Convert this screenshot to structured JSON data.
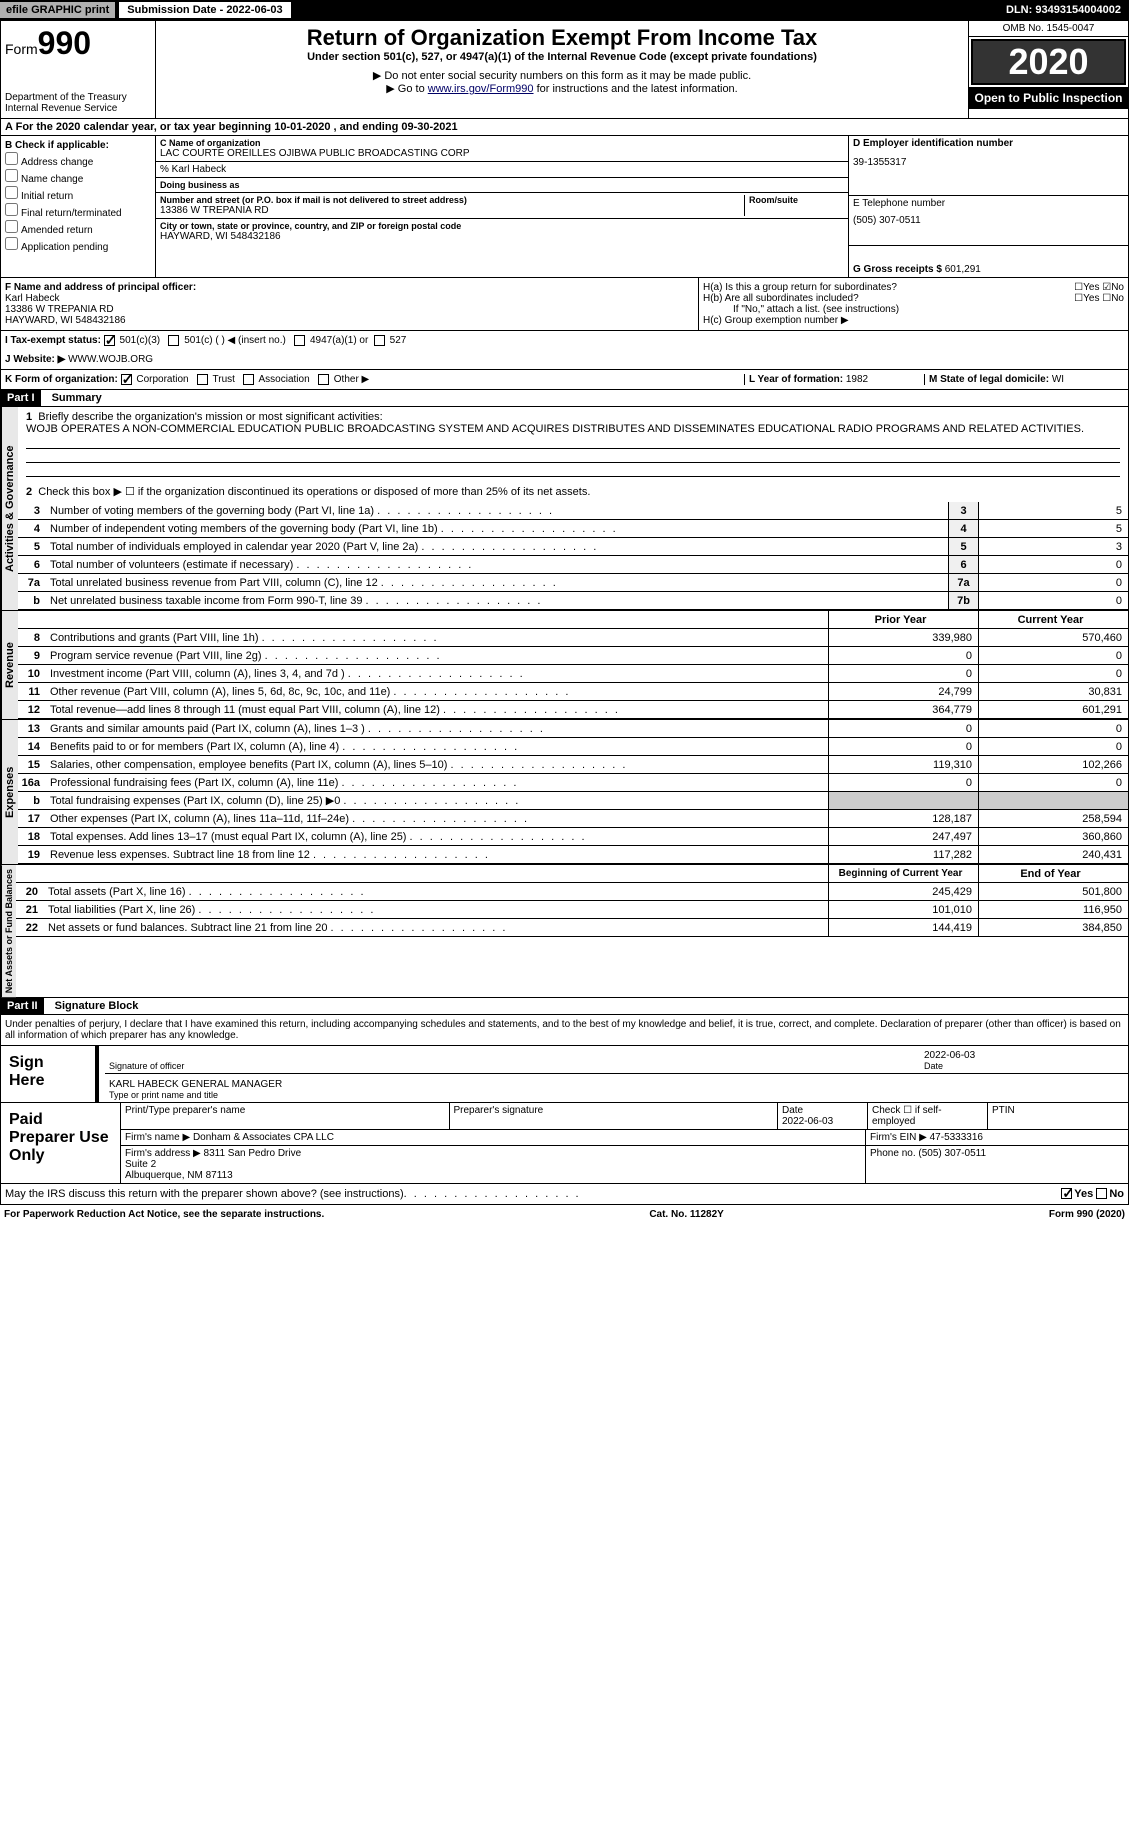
{
  "topbar": {
    "efile": "efile GRAPHIC print",
    "submission_label": "Submission Date - 2022-06-03",
    "dln": "DLN: 93493154004002"
  },
  "header": {
    "form_prefix": "Form",
    "form_num": "990",
    "dept": "Department of the Treasury",
    "irs": "Internal Revenue Service",
    "title": "Return of Organization Exempt From Income Tax",
    "subtitle": "Under section 501(c), 527, or 4947(a)(1) of the Internal Revenue Code (except private foundations)",
    "note1": "▶ Do not enter social security numbers on this form as it may be made public.",
    "note2_pre": "▶ Go to ",
    "note2_link": "www.irs.gov/Form990",
    "note2_post": " for instructions and the latest information.",
    "omb": "OMB No. 1545-0047",
    "year": "2020",
    "open": "Open to Public Inspection"
  },
  "period": "For the 2020 calendar year, or tax year beginning 10-01-2020    , and ending 09-30-2021",
  "section_b": {
    "title": "B Check if applicable:",
    "items": [
      "Address change",
      "Name change",
      "Initial return",
      "Final return/terminated",
      "Amended return",
      "Application pending"
    ]
  },
  "section_c": {
    "name_lbl": "C Name of organization",
    "name": "LAC COURTE OREILLES OJIBWA PUBLIC BROADCASTING CORP",
    "care_of": "% Karl Habeck",
    "dba_lbl": "Doing business as",
    "addr_lbl": "Number and street (or P.O. box if mail is not delivered to street address)",
    "addr": "13386 W TREPANIA RD",
    "room_lbl": "Room/suite",
    "city_lbl": "City or town, state or province, country, and ZIP or foreign postal code",
    "city": "HAYWARD, WI  548432186"
  },
  "section_d": {
    "ein_lbl": "D Employer identification number",
    "ein": "39-1355317",
    "tel_lbl": "E Telephone number",
    "tel": "(505) 307-0511",
    "gross_lbl": "G Gross receipts $",
    "gross": "601,291"
  },
  "section_f": {
    "lbl": "F Name and address of principal officer:",
    "name": "Karl Habeck",
    "addr1": "13386 W TREPANIA RD",
    "addr2": "HAYWARD, WI  548432186"
  },
  "section_h": {
    "ha": "H(a)  Is this a group return for subordinates?",
    "hb": "H(b)  Are all subordinates included?",
    "hb_note": "If \"No,\" attach a list. (see instructions)",
    "hc": "H(c)  Group exemption number ▶",
    "yes": "Yes",
    "no": "No"
  },
  "section_i": {
    "lbl": "I    Tax-exempt status:",
    "opt1": "501(c)(3)",
    "opt2": "501(c) (   ) ◀ (insert no.)",
    "opt3": "4947(a)(1) or",
    "opt4": "527"
  },
  "section_j": {
    "lbl": "J   Website: ▶",
    "val": "WWW.WOJB.ORG"
  },
  "section_k": {
    "lbl": "K Form of organization:",
    "opts": [
      "Corporation",
      "Trust",
      "Association",
      "Other ▶"
    ],
    "l_lbl": "L Year of formation:",
    "l_val": "1982",
    "m_lbl": "M State of legal domicile:",
    "m_val": "WI"
  },
  "part1": {
    "hdr": "Part I",
    "title": "Summary",
    "q1": "Briefly describe the organization's mission or most significant activities:",
    "mission": "WOJB OPERATES A NON-COMMERCIAL EDUCATION PUBLIC BROADCASTING SYSTEM AND ACQUIRES DISTRIBUTES AND DISSEMINATES EDUCATIONAL RADIO PROGRAMS AND RELATED ACTIVITIES.",
    "q2": "Check this box ▶ ☐  if the organization discontinued its operations or disposed of more than 25% of its net assets.",
    "side_labels": {
      "gov": "Activities & Governance",
      "rev": "Revenue",
      "exp": "Expenses",
      "net": "Net Assets or Fund Balances"
    },
    "prior_hdr": "Prior Year",
    "current_hdr": "Current Year",
    "boy_hdr": "Beginning of Current Year",
    "eoy_hdr": "End of Year",
    "lines_gov": [
      {
        "n": "3",
        "d": "Number of voting members of the governing body (Part VI, line 1a)",
        "b": "3",
        "v": "5"
      },
      {
        "n": "4",
        "d": "Number of independent voting members of the governing body (Part VI, line 1b)",
        "b": "4",
        "v": "5"
      },
      {
        "n": "5",
        "d": "Total number of individuals employed in calendar year 2020 (Part V, line 2a)",
        "b": "5",
        "v": "3"
      },
      {
        "n": "6",
        "d": "Total number of volunteers (estimate if necessary)",
        "b": "6",
        "v": "0"
      },
      {
        "n": "7a",
        "d": "Total unrelated business revenue from Part VIII, column (C), line 12",
        "b": "7a",
        "v": "0"
      },
      {
        "n": "b",
        "d": "Net unrelated business taxable income from Form 990-T, line 39",
        "b": "7b",
        "v": "0"
      }
    ],
    "lines_rev": [
      {
        "n": "8",
        "d": "Contributions and grants (Part VIII, line 1h)",
        "p": "339,980",
        "c": "570,460"
      },
      {
        "n": "9",
        "d": "Program service revenue (Part VIII, line 2g)",
        "p": "0",
        "c": "0"
      },
      {
        "n": "10",
        "d": "Investment income (Part VIII, column (A), lines 3, 4, and 7d )",
        "p": "0",
        "c": "0"
      },
      {
        "n": "11",
        "d": "Other revenue (Part VIII, column (A), lines 5, 6d, 8c, 9c, 10c, and 11e)",
        "p": "24,799",
        "c": "30,831"
      },
      {
        "n": "12",
        "d": "Total revenue—add lines 8 through 11 (must equal Part VIII, column (A), line 12)",
        "p": "364,779",
        "c": "601,291"
      }
    ],
    "lines_exp": [
      {
        "n": "13",
        "d": "Grants and similar amounts paid (Part IX, column (A), lines 1–3 )",
        "p": "0",
        "c": "0"
      },
      {
        "n": "14",
        "d": "Benefits paid to or for members (Part IX, column (A), line 4)",
        "p": "0",
        "c": "0"
      },
      {
        "n": "15",
        "d": "Salaries, other compensation, employee benefits (Part IX, column (A), lines 5–10)",
        "p": "119,310",
        "c": "102,266"
      },
      {
        "n": "16a",
        "d": "Professional fundraising fees (Part IX, column (A), line 11e)",
        "p": "0",
        "c": "0"
      },
      {
        "n": "b",
        "d": "Total fundraising expenses (Part IX, column (D), line 25) ▶0",
        "p": "gray",
        "c": "gray"
      },
      {
        "n": "17",
        "d": "Other expenses (Part IX, column (A), lines 11a–11d, 11f–24e)",
        "p": "128,187",
        "c": "258,594"
      },
      {
        "n": "18",
        "d": "Total expenses. Add lines 13–17 (must equal Part IX, column (A), line 25)",
        "p": "247,497",
        "c": "360,860"
      },
      {
        "n": "19",
        "d": "Revenue less expenses. Subtract line 18 from line 12",
        "p": "117,282",
        "c": "240,431"
      }
    ],
    "lines_net": [
      {
        "n": "20",
        "d": "Total assets (Part X, line 16)",
        "p": "245,429",
        "c": "501,800"
      },
      {
        "n": "21",
        "d": "Total liabilities (Part X, line 26)",
        "p": "101,010",
        "c": "116,950"
      },
      {
        "n": "22",
        "d": "Net assets or fund balances. Subtract line 21 from line 20",
        "p": "144,419",
        "c": "384,850"
      }
    ]
  },
  "part2": {
    "hdr": "Part II",
    "title": "Signature Block",
    "declaration": "Under penalties of perjury, I declare that I have examined this return, including accompanying schedules and statements, and to the best of my knowledge and belief, it is true, correct, and complete. Declaration of preparer (other than officer) is based on all information of which preparer has any knowledge.",
    "sign_here": "Sign Here",
    "sig_officer": "Signature of officer",
    "sig_date": "Date",
    "sig_date_val": "2022-06-03",
    "officer_name": "KARL HABECK  GENERAL MANAGER",
    "type_name": "Type or print name and title",
    "paid_prep": "Paid Preparer Use Only",
    "prep_name_lbl": "Print/Type preparer's name",
    "prep_sig_lbl": "Preparer's signature",
    "prep_date_lbl": "Date",
    "prep_date": "2022-06-03",
    "check_self": "Check ☐ if self-employed",
    "ptin_lbl": "PTIN",
    "firm_name_lbl": "Firm's name    ▶",
    "firm_name": "Donham & Associates CPA LLC",
    "firm_ein_lbl": "Firm's EIN ▶",
    "firm_ein": "47-5333316",
    "firm_addr_lbl": "Firm's address ▶",
    "firm_addr": "8311 San Pedro Drive\nSuite 2\nAlbuquerque, NM  87113",
    "phone_lbl": "Phone no.",
    "phone": "(505) 307-0511",
    "discuss": "May the IRS discuss this return with the preparer shown above? (see instructions)"
  },
  "footer": {
    "left": "For Paperwork Reduction Act Notice, see the separate instructions.",
    "mid": "Cat. No. 11282Y",
    "right": "Form 990 (2020)"
  }
}
